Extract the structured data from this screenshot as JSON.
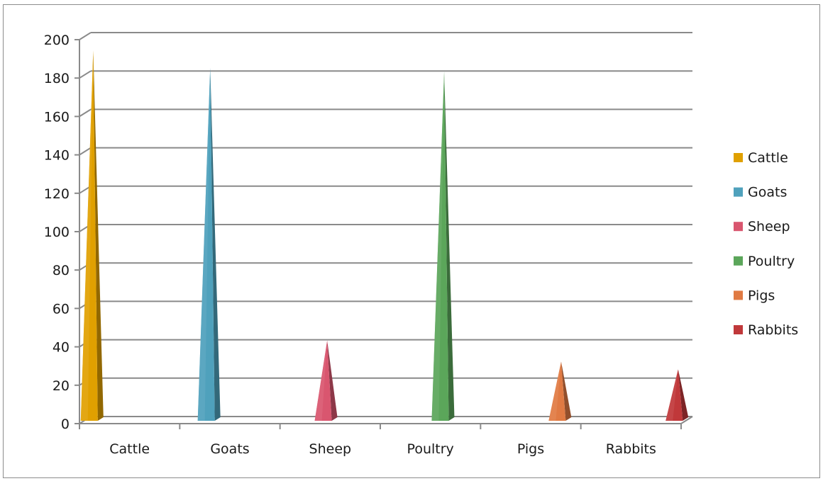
{
  "chart_data": {
    "type": "bar",
    "bar_shape": "3d-pyramid",
    "categories": [
      "Cattle",
      "Goats",
      "Sheep",
      "Poultry",
      "Pigs",
      "Rabbits"
    ],
    "series": [
      {
        "name": "Cattle",
        "color": "#E0A000",
        "values": [
          193,
          null,
          null,
          null,
          null,
          null
        ]
      },
      {
        "name": "Goats",
        "color": "#4FA1BC",
        "values": [
          null,
          184,
          null,
          null,
          null,
          null
        ]
      },
      {
        "name": "Sheep",
        "color": "#D9566F",
        "values": [
          null,
          null,
          42,
          null,
          null,
          null
        ]
      },
      {
        "name": "Poultry",
        "color": "#5BA65A",
        "values": [
          null,
          null,
          null,
          182,
          null,
          null
        ]
      },
      {
        "name": "Pigs",
        "color": "#E07A43",
        "values": [
          null,
          null,
          null,
          null,
          31,
          null
        ]
      },
      {
        "name": "Rabbits",
        "color": "#C0383A",
        "values": [
          null,
          null,
          null,
          null,
          null,
          27
        ]
      }
    ],
    "ylim": [
      0,
      200
    ],
    "yticks": [
      "0",
      "20",
      "40",
      "60",
      "80",
      "100",
      "120",
      "140",
      "160",
      "180",
      "200"
    ],
    "grid": true,
    "legend_position": "right",
    "title": "",
    "xlabel": "",
    "ylabel": ""
  }
}
